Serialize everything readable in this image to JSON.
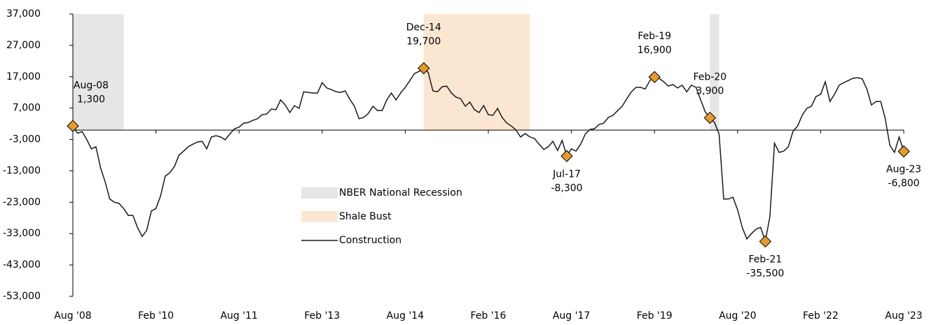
{
  "chart_data": {
    "type": "line",
    "categories": [
      "Aug '08",
      null,
      null,
      null,
      null,
      null,
      null,
      null,
      null,
      null,
      null,
      null,
      null,
      null,
      null,
      null,
      null,
      null,
      "Feb '10",
      null,
      null,
      null,
      null,
      null,
      null,
      null,
      null,
      null,
      null,
      null,
      null,
      null,
      null,
      null,
      null,
      null,
      "Aug '11",
      null,
      null,
      null,
      null,
      null,
      null,
      null,
      null,
      null,
      null,
      null,
      null,
      null,
      null,
      null,
      null,
      null,
      "Feb '13",
      null,
      null,
      null,
      null,
      null,
      null,
      null,
      null,
      null,
      null,
      null,
      null,
      null,
      null,
      null,
      null,
      null,
      "Aug '14",
      null,
      null,
      null,
      null,
      null,
      null,
      null,
      null,
      null,
      null,
      null,
      null,
      null,
      null,
      null,
      null,
      null,
      "Feb '16",
      null,
      null,
      null,
      null,
      null,
      null,
      null,
      null,
      null,
      null,
      null,
      null,
      null,
      null,
      null,
      null,
      null,
      "Aug '17",
      null,
      null,
      null,
      null,
      null,
      null,
      null,
      null,
      null,
      null,
      null,
      null,
      null,
      null,
      null,
      null,
      null,
      "Feb '19",
      null,
      null,
      null,
      null,
      null,
      null,
      null,
      null,
      null,
      null,
      null,
      null,
      null,
      null,
      null,
      null,
      null,
      "Aug '20",
      null,
      null,
      null,
      null,
      null,
      null,
      null,
      null,
      null,
      null,
      null,
      null,
      null,
      null,
      null,
      null,
      null,
      "Feb '22",
      null,
      null,
      null,
      null,
      null,
      null,
      null,
      null,
      null,
      null,
      null,
      null,
      null,
      null,
      null,
      null,
      null,
      "Aug '23"
    ],
    "series": [
      {
        "name": "Construction",
        "color": "#1a1a1a",
        "values": [
          1300,
          -1000,
          -500,
          -3000,
          -6000,
          -5300,
          -12000,
          -16500,
          -22000,
          -23000,
          -23400,
          -25000,
          -27200,
          -27200,
          -31000,
          -33900,
          -32000,
          -25800,
          -25000,
          -21000,
          -14700,
          -13600,
          -11600,
          -8000,
          -6700,
          -5300,
          -4500,
          -3800,
          -3600,
          -6000,
          -2200,
          -1800,
          -2200,
          -3100,
          -1300,
          400,
          900,
          2200,
          2400,
          3100,
          3600,
          4900,
          5100,
          6700,
          6500,
          9600,
          8000,
          5600,
          7800,
          6900,
          12200,
          12000,
          11800,
          11800,
          15100,
          13400,
          12900,
          12200,
          12000,
          12500,
          9800,
          7600,
          3600,
          4000,
          5300,
          7600,
          6200,
          6200,
          9600,
          11800,
          9600,
          11800,
          13600,
          15800,
          18000,
          18700,
          19700,
          18300,
          12500,
          12200,
          13800,
          14000,
          11800,
          10500,
          10000,
          7600,
          8900,
          6500,
          5600,
          7800,
          4900,
          4700,
          6900,
          4000,
          2200,
          1300,
          0,
          -2200,
          -1100,
          -2200,
          -2700,
          -4500,
          -6200,
          -5300,
          -3600,
          -6500,
          -3300,
          -8300,
          -6000,
          -6700,
          -4500,
          -1300,
          200,
          400,
          1800,
          2200,
          4000,
          4700,
          6200,
          7600,
          10000,
          12200,
          13600,
          13600,
          13100,
          15800,
          16900,
          16500,
          15400,
          14000,
          14500,
          13400,
          14300,
          12200,
          14300,
          13600,
          9600,
          5800,
          3900,
          2400,
          -1300,
          -22000,
          -22000,
          -21400,
          -25400,
          -31000,
          -34700,
          -33000,
          -31600,
          -31000,
          -35500,
          -27600,
          -4200,
          -7100,
          -6700,
          -5300,
          -400,
          1300,
          4700,
          6900,
          7600,
          10700,
          11400,
          15400,
          9100,
          11400,
          14300,
          15100,
          15800,
          16500,
          16700,
          16300,
          13100,
          8000,
          9100,
          9100,
          3600,
          -4900,
          -7100,
          -2200,
          -6800
        ]
      }
    ],
    "shaded_periods": [
      {
        "name": "NBER National Recession",
        "color": "#e6e6e6",
        "ranges": [
          [
            0,
            11
          ],
          [
            138,
            140
          ]
        ]
      },
      {
        "name": "Shale Bust",
        "color": "#fbe7d1",
        "ranges": [
          [
            76,
            99
          ]
        ]
      }
    ],
    "annotations": [
      {
        "index": 0,
        "label": "Aug-08",
        "value": 1300,
        "value_label": "1,300"
      },
      {
        "index": 76,
        "label": "Dec-14",
        "value": 19700,
        "value_label": "19,700"
      },
      {
        "index": 107,
        "label": "Jul-17",
        "value": -8300,
        "value_label": "-8,300"
      },
      {
        "index": 126,
        "label": "Feb-19",
        "value": 16900,
        "value_label": "16,900"
      },
      {
        "index": 138,
        "label": "Feb-20",
        "value": 3900,
        "value_label": "3,900"
      },
      {
        "index": 150,
        "label": "Feb-21",
        "value": -35500,
        "value_label": "-35,500"
      },
      {
        "index": 180,
        "label": "Aug-23",
        "value": -6800,
        "value_label": "-6,800"
      }
    ],
    "marker_color": "#e39b2c",
    "ylim": [
      -53000,
      37000
    ],
    "yticks": [
      {
        "value": -53000,
        "label": "-53,000"
      },
      {
        "value": -43000,
        "label": "-43,000"
      },
      {
        "value": -33000,
        "label": "-33,000"
      },
      {
        "value": -23000,
        "label": "-23,000"
      },
      {
        "value": -13000,
        "label": "-13,000"
      },
      {
        "value": -3000,
        "label": "-3,000"
      },
      {
        "value": 7000,
        "label": "7,000"
      },
      {
        "value": 17000,
        "label": "17,000"
      },
      {
        "value": 27000,
        "label": "27,000"
      },
      {
        "value": 37000,
        "label": "37,000"
      }
    ],
    "grid": false,
    "legend": "center"
  }
}
